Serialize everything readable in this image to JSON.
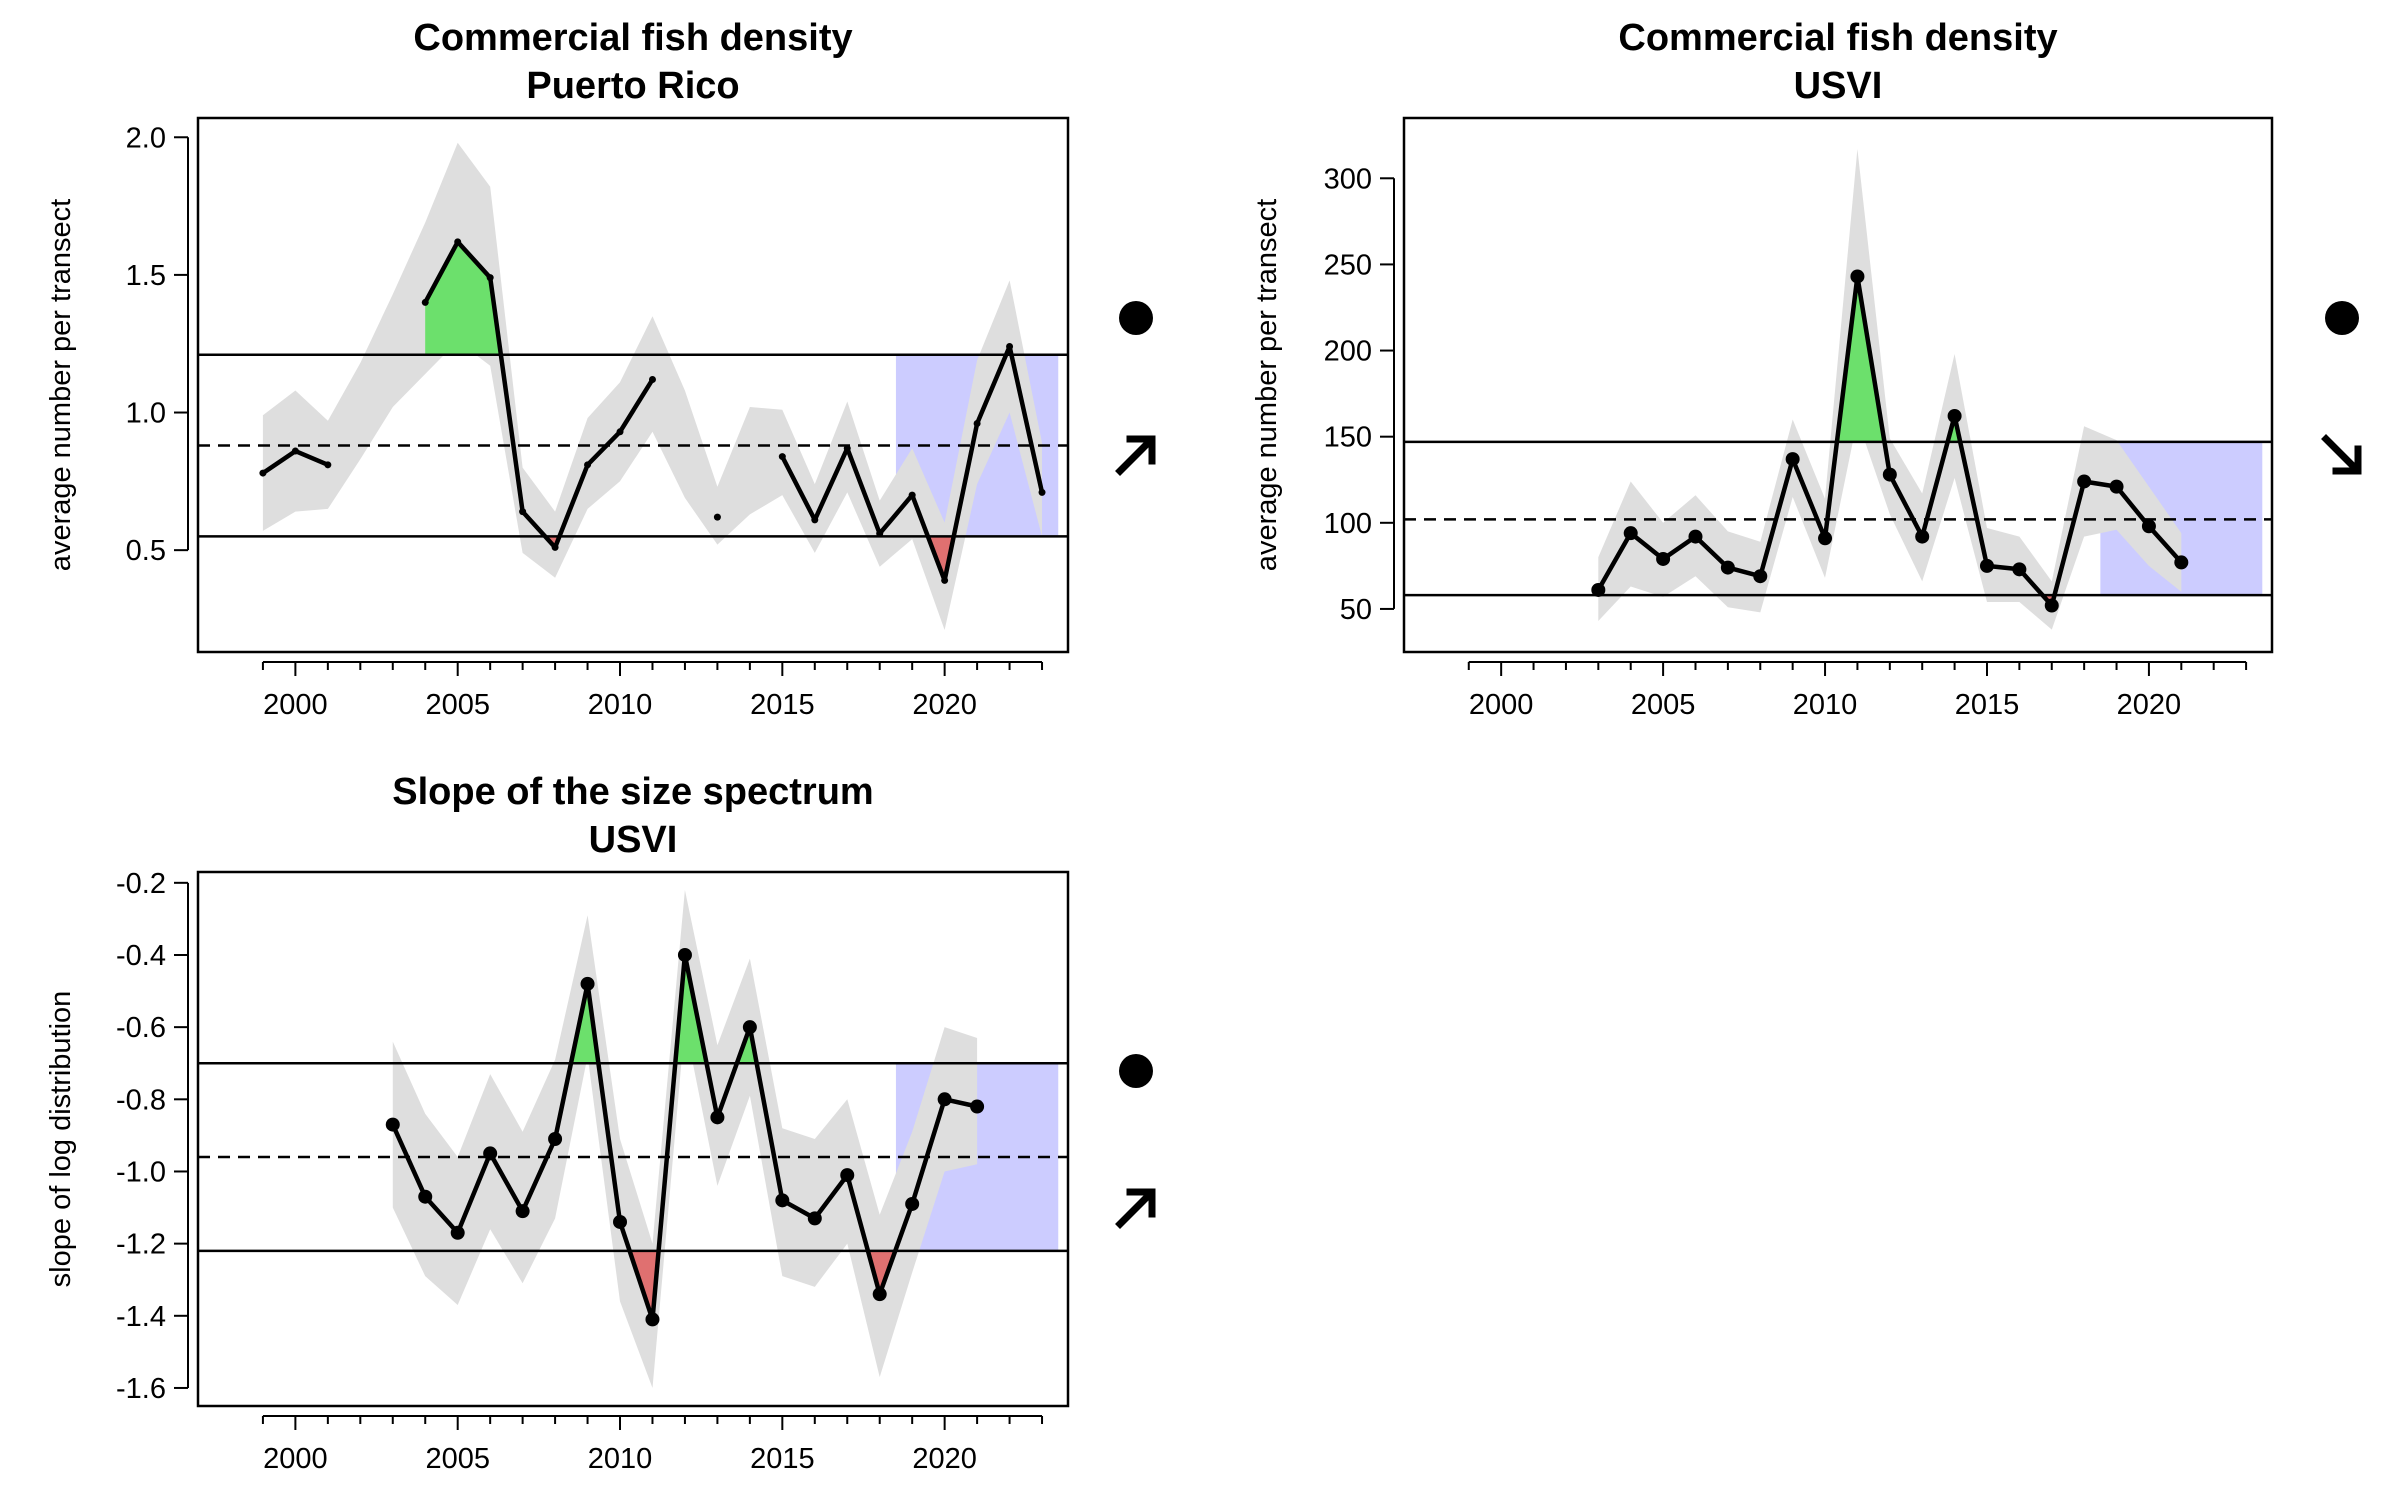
{
  "chart_data": [
    {
      "type": "line",
      "title": "Commercial fish density",
      "subtitle": "Puerto Rico",
      "ylabel": "average number per transect",
      "xlabel": "",
      "xlim": [
        1997,
        2023.8
      ],
      "ylim": [
        0.13,
        2.07
      ],
      "xticks": [
        2000,
        2005,
        2010,
        2015,
        2020
      ],
      "yticks": [
        "0.5",
        "1.0",
        "1.5",
        "2.0"
      ],
      "series": [
        {
          "x": [
            1999,
            2000,
            2001,
            2002,
            2003,
            2004,
            2005,
            2006,
            2007,
            2008,
            2009,
            2010,
            2011,
            2012,
            2013,
            2014,
            2015,
            2016,
            2017,
            2018,
            2019,
            2020,
            2021,
            2022,
            2023
          ],
          "y": [
            0.78,
            0.86,
            0.81,
            null,
            null,
            1.4,
            1.62,
            1.49,
            0.64,
            0.51,
            0.81,
            0.93,
            1.12,
            null,
            0.62,
            null,
            0.84,
            0.61,
            0.87,
            0.56,
            0.7,
            0.39,
            0.96,
            1.24,
            0.71
          ]
        }
      ],
      "ci_band": {
        "x": [
          1999,
          2000,
          2001,
          2002,
          2003,
          2004,
          2005,
          2006,
          2007,
          2008,
          2009,
          2010,
          2011,
          2012,
          2013,
          2014,
          2015,
          2016,
          2017,
          2018,
          2019,
          2020,
          2021,
          2022,
          2023
        ],
        "lower": [
          0.57,
          0.64,
          0.65,
          0.83,
          1.02,
          1.14,
          1.26,
          1.17,
          0.49,
          0.4,
          0.65,
          0.75,
          0.93,
          0.69,
          0.52,
          0.63,
          0.7,
          0.49,
          0.71,
          0.44,
          0.54,
          0.21,
          0.74,
          1.0,
          0.55
        ],
        "upper": [
          0.99,
          1.08,
          0.97,
          1.18,
          1.43,
          1.69,
          1.98,
          1.82,
          0.8,
          0.64,
          0.98,
          1.11,
          1.35,
          1.08,
          0.73,
          1.02,
          1.01,
          0.74,
          1.04,
          0.68,
          0.87,
          0.6,
          1.19,
          1.48,
          0.89
        ]
      },
      "mean": 0.88,
      "upper_sd": 1.21,
      "lower_sd": 0.55,
      "recent_window": [
        2018.5,
        2023.5
      ],
      "status_mean": "above-average",
      "status_trend": "increasing",
      "colors": {
        "above": "#6CE06C",
        "below": "#E07070",
        "window": "#CCCCFF",
        "ci": "#DEDEDE"
      }
    },
    {
      "type": "line",
      "title": "Commercial fish density",
      "subtitle": "USVI",
      "ylabel": "average number per transect",
      "xlabel": "",
      "xlim": [
        1997,
        2023.8
      ],
      "ylim": [
        25,
        335
      ],
      "xticks": [
        2000,
        2005,
        2010,
        2015,
        2020
      ],
      "yticks": [
        "50",
        "100",
        "150",
        "200",
        "250",
        "300"
      ],
      "series": [
        {
          "x": [
            2003,
            2004,
            2005,
            2006,
            2007,
            2008,
            2009,
            2010,
            2011,
            2012,
            2013,
            2014,
            2015,
            2016,
            2017,
            2018,
            2019,
            2020,
            2021
          ],
          "y": [
            61,
            94,
            79,
            92,
            74,
            69,
            137,
            91,
            243,
            128,
            92,
            162,
            75,
            73,
            52,
            124,
            121,
            98,
            77
          ]
        }
      ],
      "ci_band": {
        "x": [
          2003,
          2004,
          2005,
          2006,
          2007,
          2008,
          2009,
          2010,
          2011,
          2012,
          2013,
          2014,
          2015,
          2016,
          2017,
          2018,
          2019,
          2020,
          2021
        ],
        "lower": [
          43,
          63,
          57,
          69,
          51,
          48,
          115,
          68,
          160,
          105,
          66,
          126,
          54,
          54,
          38,
          92,
          96,
          75,
          60
        ],
        "upper": [
          80,
          124,
          100,
          116,
          95,
          89,
          160,
          114,
          317,
          149,
          117,
          198,
          97,
          92,
          66,
          156,
          148,
          121,
          94
        ]
      },
      "mean": 102,
      "upper_sd": 147,
      "lower_sd": 58,
      "recent_window": [
        2018.5,
        2023.5
      ],
      "status_mean": "above-average",
      "status_trend": "decreasing",
      "colors": {
        "above": "#6CE06C",
        "below": "#E07070",
        "window": "#CCCCFF",
        "ci": "#DEDEDE"
      }
    },
    {
      "type": "line",
      "title": "Slope of the size spectrum",
      "subtitle": "USVI",
      "ylabel": "slope of log distribution",
      "xlabel": "",
      "xlim": [
        1997,
        2023.8
      ],
      "ylim": [
        -1.65,
        -0.17
      ],
      "xticks": [
        2000,
        2005,
        2010,
        2015,
        2020
      ],
      "yticks": [
        "-1.6",
        "-1.4",
        "-1.2",
        "-1.0",
        "-0.8",
        "-0.6",
        "-0.4",
        "-0.2"
      ],
      "series": [
        {
          "x": [
            2003,
            2004,
            2005,
            2006,
            2007,
            2008,
            2009,
            2010,
            2011,
            2012,
            2013,
            2014,
            2015,
            2016,
            2017,
            2018,
            2019,
            2020,
            2021
          ],
          "y": [
            -0.87,
            -1.07,
            -1.17,
            -0.95,
            -1.11,
            -0.91,
            -0.48,
            -1.14,
            -1.41,
            -0.4,
            -0.85,
            -0.6,
            -1.08,
            -1.13,
            -1.01,
            -1.34,
            -1.09,
            -0.8,
            -0.82
          ]
        }
      ],
      "ci_band": {
        "x": [
          2003,
          2004,
          2005,
          2006,
          2007,
          2008,
          2009,
          2010,
          2011,
          2012,
          2013,
          2014,
          2015,
          2016,
          2017,
          2018,
          2019,
          2020,
          2021
        ],
        "lower": [
          -1.1,
          -1.29,
          -1.37,
          -1.16,
          -1.31,
          -1.13,
          -0.68,
          -1.36,
          -1.6,
          -0.59,
          -1.04,
          -0.79,
          -1.29,
          -1.32,
          -1.2,
          -1.57,
          -1.28,
          -1.0,
          -0.98
        ],
        "upper": [
          -0.64,
          -0.84,
          -0.96,
          -0.73,
          -0.89,
          -0.69,
          -0.29,
          -0.91,
          -1.2,
          -0.22,
          -0.65,
          -0.41,
          -0.88,
          -0.91,
          -0.8,
          -1.12,
          -0.89,
          -0.6,
          -0.63
        ]
      },
      "mean": -0.96,
      "upper_sd": -0.7,
      "lower_sd": -1.22,
      "recent_window": [
        2018.5,
        2023.5
      ],
      "status_mean": "above-average",
      "status_trend": "increasing",
      "colors": {
        "above": "#6CE06C",
        "below": "#E07070",
        "window": "#CCCCFF",
        "ci": "#DEDEDE"
      }
    }
  ]
}
